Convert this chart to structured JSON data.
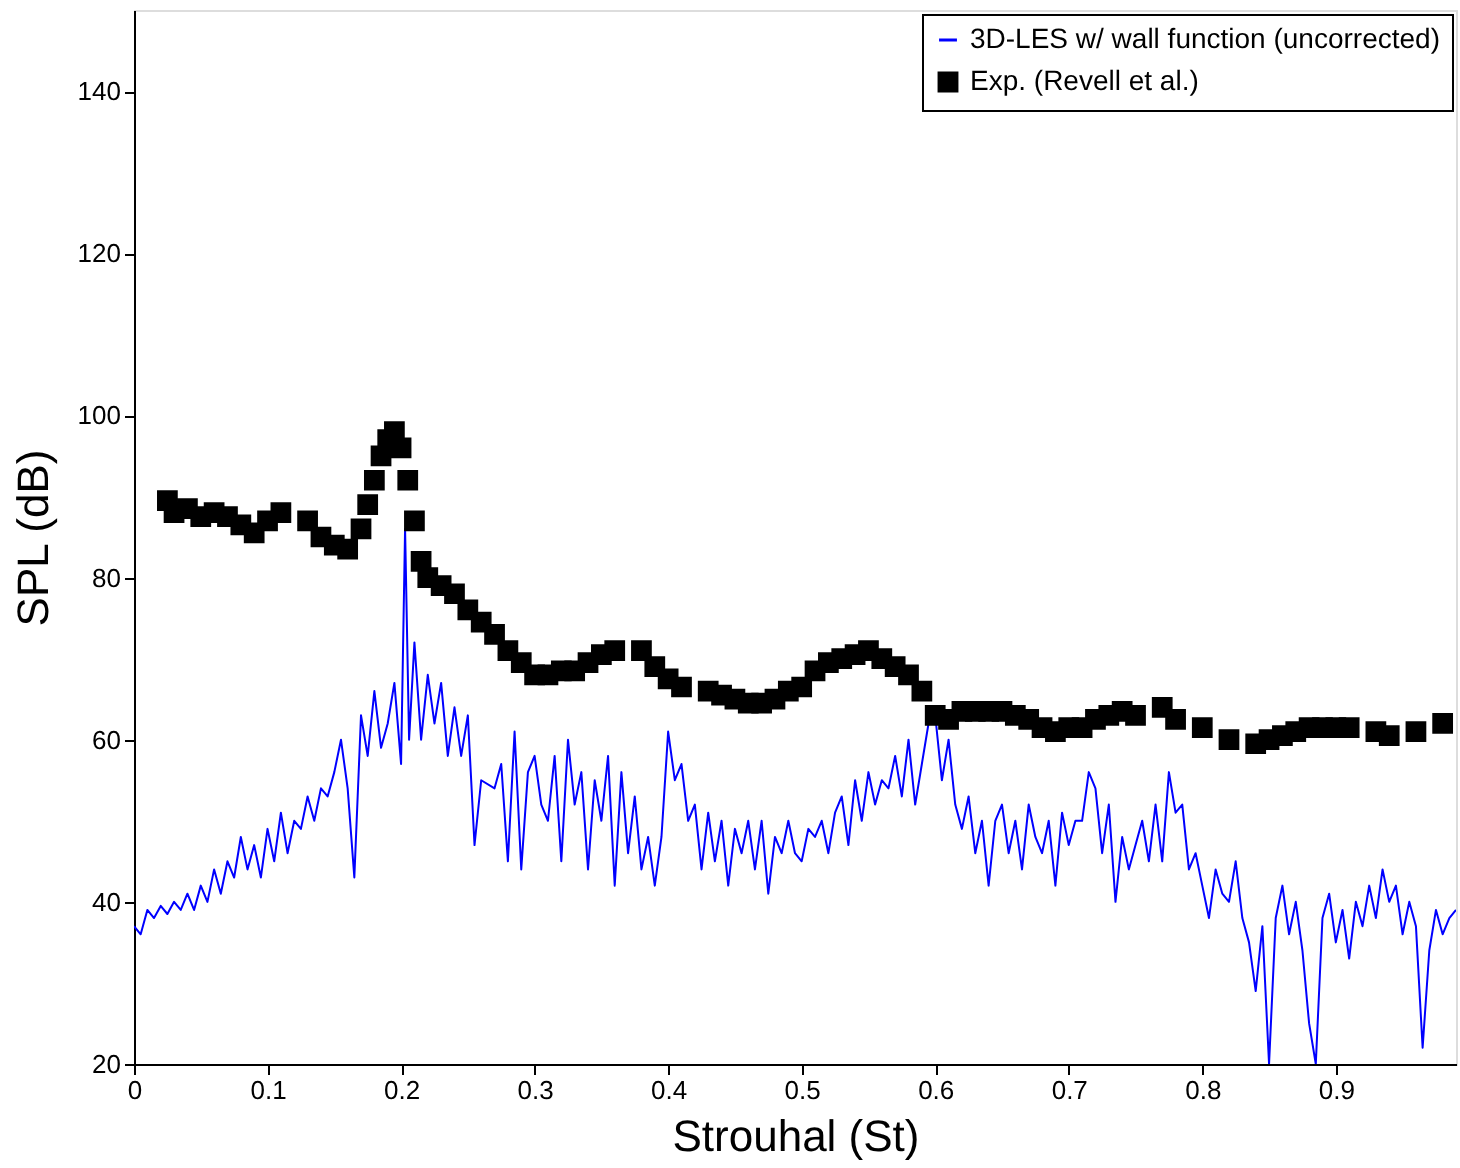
{
  "chart_data": {
    "type": "line",
    "xlabel": "Strouhal (St)",
    "ylabel": "SPL (dB)",
    "xlim": [
      0,
      0.99
    ],
    "ylim": [
      20,
      150
    ],
    "xticks": [
      0,
      0.1,
      0.2,
      0.3,
      0.4,
      0.5,
      0.6,
      0.7,
      0.8,
      0.9
    ],
    "yticks": [
      20,
      40,
      60,
      80,
      100,
      120,
      140
    ],
    "grid": false,
    "legend": "top right",
    "series": [
      {
        "name": "3D-LES w/ wall function (uncorrected)",
        "color": "#0000ff",
        "marker": "none",
        "line_style": "solid",
        "x": [
          0,
          0.005,
          0.01,
          0.015,
          0.02,
          0.025,
          0.03,
          0.035,
          0.04,
          0.045,
          0.05,
          0.055,
          0.06,
          0.065,
          0.07,
          0.075,
          0.08,
          0.085,
          0.09,
          0.095,
          0.1,
          0.105,
          0.11,
          0.115,
          0.12,
          0.125,
          0.13,
          0.135,
          0.14,
          0.145,
          0.15,
          0.155,
          0.16,
          0.165,
          0.17,
          0.175,
          0.18,
          0.185,
          0.19,
          0.195,
          0.2,
          0.203,
          0.206,
          0.21,
          0.215,
          0.22,
          0.225,
          0.23,
          0.235,
          0.24,
          0.245,
          0.25,
          0.255,
          0.26,
          0.27,
          0.275,
          0.28,
          0.285,
          0.29,
          0.295,
          0.3,
          0.305,
          0.31,
          0.315,
          0.32,
          0.325,
          0.33,
          0.335,
          0.34,
          0.345,
          0.35,
          0.355,
          0.36,
          0.365,
          0.37,
          0.375,
          0.38,
          0.385,
          0.39,
          0.395,
          0.4,
          0.405,
          0.41,
          0.415,
          0.42,
          0.425,
          0.43,
          0.435,
          0.44,
          0.445,
          0.45,
          0.455,
          0.46,
          0.465,
          0.47,
          0.475,
          0.48,
          0.485,
          0.49,
          0.495,
          0.5,
          0.505,
          0.51,
          0.515,
          0.52,
          0.525,
          0.53,
          0.535,
          0.54,
          0.545,
          0.55,
          0.555,
          0.56,
          0.565,
          0.57,
          0.575,
          0.58,
          0.585,
          0.59,
          0.595,
          0.6,
          0.605,
          0.61,
          0.615,
          0.62,
          0.625,
          0.63,
          0.635,
          0.64,
          0.645,
          0.65,
          0.655,
          0.66,
          0.665,
          0.67,
          0.675,
          0.68,
          0.685,
          0.69,
          0.695,
          0.7,
          0.705,
          0.71,
          0.715,
          0.72,
          0.725,
          0.73,
          0.735,
          0.74,
          0.745,
          0.75,
          0.755,
          0.76,
          0.765,
          0.77,
          0.775,
          0.78,
          0.785,
          0.79,
          0.795,
          0.8,
          0.805,
          0.81,
          0.815,
          0.82,
          0.825,
          0.83,
          0.835,
          0.84,
          0.845,
          0.85,
          0.855,
          0.86,
          0.865,
          0.87,
          0.875,
          0.88,
          0.885,
          0.89,
          0.895,
          0.9,
          0.905,
          0.91,
          0.915,
          0.92,
          0.925,
          0.93,
          0.935,
          0.94,
          0.945,
          0.95,
          0.955,
          0.96,
          0.965,
          0.97,
          0.975,
          0.98,
          0.985,
          0.99
        ],
        "values": [
          37,
          36,
          39,
          38,
          39.5,
          38.5,
          40,
          39,
          41,
          39,
          42,
          40,
          44,
          41,
          45,
          43,
          48,
          44,
          47,
          43,
          49,
          45,
          51,
          46,
          50,
          49,
          53,
          50,
          54,
          53,
          56,
          60,
          54,
          43,
          63,
          58,
          66,
          59,
          62,
          67,
          57,
          86,
          60,
          72,
          60,
          68,
          62,
          67,
          58,
          64,
          58,
          63,
          47,
          55,
          54,
          57,
          45,
          61,
          44,
          56,
          58,
          52,
          50,
          58,
          45,
          60,
          52,
          56,
          44,
          55,
          50,
          58,
          42,
          56,
          46,
          53,
          44,
          48,
          42,
          48,
          61,
          55,
          57,
          50,
          52,
          44,
          51,
          45,
          50,
          42,
          49,
          46,
          50,
          44,
          50,
          41,
          48,
          46,
          50,
          46,
          45,
          49,
          48,
          50,
          46,
          51,
          53,
          47,
          55,
          50,
          56,
          52,
          55,
          54,
          58,
          53,
          60,
          52,
          57,
          62,
          63,
          55,
          60,
          52,
          49,
          53,
          46,
          50,
          42,
          50,
          52,
          46,
          50,
          44,
          52,
          48,
          46,
          50,
          42,
          51,
          47,
          50,
          50,
          56,
          54,
          46,
          52,
          40,
          48,
          44,
          47,
          50,
          45,
          52,
          45,
          56,
          51,
          52,
          44,
          46,
          42,
          38,
          44,
          41,
          40,
          45,
          38,
          35,
          29,
          37,
          20,
          38,
          42,
          36,
          40,
          34,
          25,
          20,
          38,
          41,
          35,
          39,
          33,
          40,
          37,
          42,
          38,
          44,
          40,
          42,
          36,
          40,
          37,
          22,
          34,
          39,
          36,
          38,
          39
        ]
      },
      {
        "name": "Exp. (Revell et al.)",
        "type": "scatter",
        "color": "#000000",
        "marker": "square",
        "x": [
          0.025,
          0.03,
          0.04,
          0.05,
          0.06,
          0.07,
          0.08,
          0.09,
          0.1,
          0.11,
          0.13,
          0.14,
          0.15,
          0.16,
          0.17,
          0.175,
          0.18,
          0.185,
          0.19,
          0.195,
          0.2,
          0.205,
          0.21,
          0.215,
          0.22,
          0.23,
          0.24,
          0.25,
          0.26,
          0.27,
          0.28,
          0.29,
          0.3,
          0.31,
          0.32,
          0.33,
          0.34,
          0.35,
          0.36,
          0.38,
          0.39,
          0.4,
          0.41,
          0.43,
          0.44,
          0.45,
          0.46,
          0.47,
          0.48,
          0.49,
          0.5,
          0.51,
          0.52,
          0.53,
          0.54,
          0.55,
          0.56,
          0.57,
          0.58,
          0.59,
          0.6,
          0.61,
          0.62,
          0.63,
          0.64,
          0.65,
          0.66,
          0.67,
          0.68,
          0.69,
          0.7,
          0.71,
          0.72,
          0.73,
          0.74,
          0.75,
          0.77,
          0.78,
          0.8,
          0.82,
          0.84,
          0.85,
          0.86,
          0.87,
          0.88,
          0.89,
          0.9,
          0.91,
          0.93,
          0.94,
          0.96,
          0.98
        ],
        "values": [
          89.5,
          88,
          88.5,
          87.5,
          88,
          87.5,
          86.5,
          85.5,
          87,
          88,
          87,
          85,
          84,
          83.5,
          86,
          89,
          92,
          95,
          97,
          98,
          96,
          92,
          87,
          82,
          80,
          79,
          78,
          76,
          74.5,
          73,
          71,
          69.5,
          68,
          68,
          68.5,
          68.5,
          69.5,
          70.5,
          71,
          71,
          69,
          67.5,
          66.5,
          66,
          65.5,
          65,
          64.5,
          64.5,
          65,
          66,
          66.5,
          68.5,
          69.5,
          70,
          70.5,
          71,
          70,
          69,
          68,
          66,
          63,
          62.5,
          63.5,
          63.5,
          63.5,
          63.5,
          63,
          62.5,
          61.5,
          61,
          61.5,
          61.5,
          62.5,
          63,
          63.5,
          63,
          64,
          62.5,
          61.5,
          60,
          59.5,
          60,
          60.5,
          61,
          61.5,
          61.5,
          61.5,
          61.5,
          61,
          60.5,
          61,
          62
        ]
      }
    ]
  }
}
